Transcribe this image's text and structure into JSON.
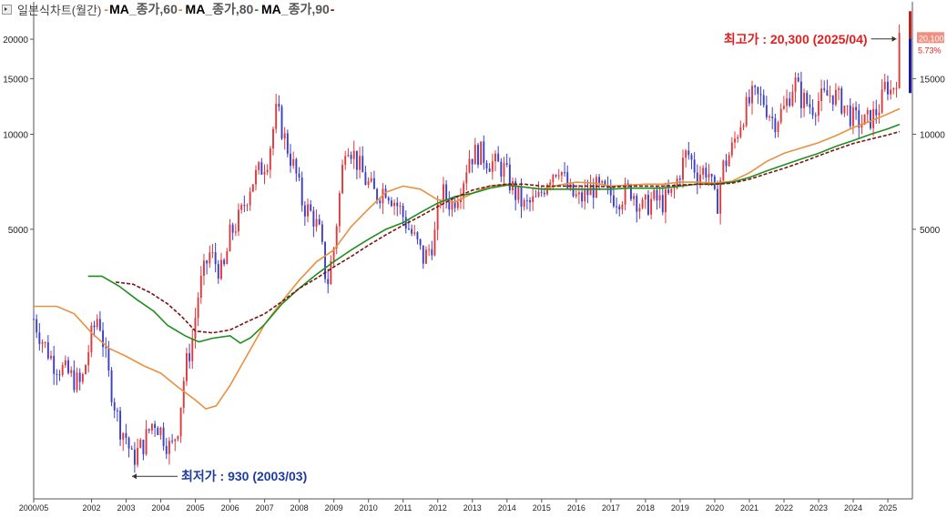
{
  "legend": {
    "title": "일본식차트(월간)",
    "ma_items": [
      {
        "prefix": "MA",
        "label": "_종가,60",
        "color": "#e8913f"
      },
      {
        "prefix": "MA",
        "label": "_종가,80",
        "color": "#1f8f1f"
      },
      {
        "prefix": "MA",
        "label": "_종가,90",
        "color": "#7b1515"
      }
    ],
    "dash": "-"
  },
  "colors": {
    "up": "#e0383b",
    "down": "#3b3fc7",
    "grid": "#d9d9d9",
    "max_text": "#e02020",
    "min_text": "#1f3ca0",
    "price_box": "#f09080"
  },
  "chart_data": {
    "type": "candlestick",
    "y_scale": "log",
    "ylim": [
      700,
      23000
    ],
    "y_ticks_left": [
      20000,
      15000,
      10000,
      5000
    ],
    "y_ticks_left_labels": [
      "20000",
      "15000",
      "10000",
      "5000"
    ],
    "y_ticks_right": [
      15000,
      10000,
      5000
    ],
    "y_ticks_right_labels": [
      "15000",
      "10000",
      "5000"
    ],
    "x_tick_labels": [
      "2000/05",
      "2002",
      "2003",
      "2004",
      "2005",
      "2006",
      "2007",
      "2008",
      "2009",
      "2010",
      "2011",
      "2012",
      "2013",
      "2014",
      "2015",
      "2016",
      "2017",
      "2018",
      "2019",
      "2020",
      "2021",
      "2022",
      "2023",
      "2024",
      "2025"
    ],
    "x_tick_dates": [
      2000.33,
      2002.0,
      2003.0,
      2004.0,
      2005.0,
      2006.0,
      2007.0,
      2008.0,
      2009.0,
      2010.0,
      2011.0,
      2012.0,
      2013.0,
      2014.0,
      2015.0,
      2016.0,
      2017.0,
      2018.0,
      2019.0,
      2020.0,
      2021.0,
      2022.0,
      2023.0,
      2024.0,
      2025.0
    ],
    "x_range": [
      2000.33,
      2025.34
    ],
    "close_path": [
      [
        2000.33,
        2600
      ],
      [
        2000.6,
        2200
      ],
      [
        2000.9,
        1900
      ],
      [
        2001.3,
        1750
      ],
      [
        2001.7,
        1600
      ],
      [
        2002.0,
        2300
      ],
      [
        2002.2,
        2700
      ],
      [
        2002.5,
        1700
      ],
      [
        2002.8,
        1200
      ],
      [
        2003.0,
        1100
      ],
      [
        2003.17,
        930
      ],
      [
        2003.5,
        1050
      ],
      [
        2003.8,
        1250
      ],
      [
        2004.0,
        1150
      ],
      [
        2004.3,
        1000
      ],
      [
        2004.5,
        1200
      ],
      [
        2004.7,
        1800
      ],
      [
        2004.9,
        2200
      ],
      [
        2005.1,
        3200
      ],
      [
        2005.4,
        4200
      ],
      [
        2005.8,
        3600
      ],
      [
        2006.0,
        4800
      ],
      [
        2006.3,
        5500
      ],
      [
        2006.6,
        7000
      ],
      [
        2006.9,
        7800
      ],
      [
        2007.1,
        8500
      ],
      [
        2007.35,
        12000
      ],
      [
        2007.6,
        9500
      ],
      [
        2007.9,
        7500
      ],
      [
        2008.1,
        6000
      ],
      [
        2008.4,
        5500
      ],
      [
        2008.6,
        4800
      ],
      [
        2008.8,
        3300
      ],
      [
        2009.0,
        4400
      ],
      [
        2009.2,
        7000
      ],
      [
        2009.35,
        9800
      ],
      [
        2009.6,
        8500
      ],
      [
        2009.9,
        7200
      ],
      [
        2010.2,
        6400
      ],
      [
        2010.5,
        6800
      ],
      [
        2010.9,
        5800
      ],
      [
        2011.1,
        5200
      ],
      [
        2011.4,
        4500
      ],
      [
        2011.6,
        4000
      ],
      [
        2011.9,
        4700
      ],
      [
        2012.1,
        6600
      ],
      [
        2012.4,
        6000
      ],
      [
        2012.7,
        7000
      ],
      [
        2012.9,
        8500
      ],
      [
        2013.2,
        8800
      ],
      [
        2013.5,
        8200
      ],
      [
        2013.9,
        7800
      ],
      [
        2014.2,
        6600
      ],
      [
        2014.5,
        5900
      ],
      [
        2014.9,
        6200
      ],
      [
        2015.2,
        7400
      ],
      [
        2015.5,
        8000
      ],
      [
        2015.8,
        6500
      ],
      [
        2016.1,
        6200
      ],
      [
        2016.5,
        6800
      ],
      [
        2016.9,
        6500
      ],
      [
        2017.2,
        6300
      ],
      [
        2017.6,
        6700
      ],
      [
        2017.9,
        5800
      ],
      [
        2018.2,
        6200
      ],
      [
        2018.5,
        6100
      ],
      [
        2018.8,
        6500
      ],
      [
        2019.0,
        7700
      ],
      [
        2019.2,
        8800
      ],
      [
        2019.5,
        7500
      ],
      [
        2019.8,
        7800
      ],
      [
        2020.05,
        5800
      ],
      [
        2020.2,
        7700
      ],
      [
        2020.5,
        9000
      ],
      [
        2020.8,
        11500
      ],
      [
        2021.1,
        13200
      ],
      [
        2021.4,
        12800
      ],
      [
        2021.7,
        11000
      ],
      [
        2022.0,
        12000
      ],
      [
        2022.3,
        14800
      ],
      [
        2022.5,
        13000
      ],
      [
        2022.8,
        12200
      ],
      [
        2023.0,
        12800
      ],
      [
        2023.4,
        13500
      ],
      [
        2023.7,
        12500
      ],
      [
        2024.0,
        11200
      ],
      [
        2024.3,
        10800
      ],
      [
        2024.6,
        11500
      ],
      [
        2024.8,
        12500
      ],
      [
        2024.95,
        14600
      ],
      [
        2025.1,
        13600
      ],
      [
        2025.25,
        15400
      ],
      [
        2025.34,
        20100
      ]
    ],
    "ma60": [
      [
        2000.33,
        2850
      ],
      [
        2001.0,
        2850
      ],
      [
        2001.5,
        2700
      ],
      [
        2002.0,
        2350
      ],
      [
        2002.5,
        2100
      ],
      [
        2003.0,
        1980
      ],
      [
        2003.5,
        1850
      ],
      [
        2004.0,
        1750
      ],
      [
        2004.5,
        1580
      ],
      [
        2005.0,
        1440
      ],
      [
        2005.3,
        1350
      ],
      [
        2005.6,
        1380
      ],
      [
        2006.0,
        1600
      ],
      [
        2006.5,
        2000
      ],
      [
        2007.0,
        2500
      ],
      [
        2007.5,
        2950
      ],
      [
        2008.0,
        3450
      ],
      [
        2008.5,
        3950
      ],
      [
        2009.0,
        4300
      ],
      [
        2009.5,
        5100
      ],
      [
        2010.0,
        5800
      ],
      [
        2010.5,
        6550
      ],
      [
        2011.0,
        6850
      ],
      [
        2011.5,
        6700
      ],
      [
        2012.0,
        6200
      ],
      [
        2012.5,
        6100
      ],
      [
        2013.0,
        6500
      ],
      [
        2013.5,
        6850
      ],
      [
        2014.0,
        6950
      ],
      [
        2014.5,
        6800
      ],
      [
        2015.0,
        6700
      ],
      [
        2015.5,
        6900
      ],
      [
        2016.0,
        7050
      ],
      [
        2016.5,
        7000
      ],
      [
        2017.0,
        6850
      ],
      [
        2017.5,
        6900
      ],
      [
        2018.0,
        6950
      ],
      [
        2018.5,
        6950
      ],
      [
        2019.0,
        7050
      ],
      [
        2019.5,
        7050
      ],
      [
        2020.0,
        7000
      ],
      [
        2020.5,
        7100
      ],
      [
        2021.0,
        7550
      ],
      [
        2021.5,
        8200
      ],
      [
        2022.0,
        8700
      ],
      [
        2022.5,
        9050
      ],
      [
        2023.0,
        9400
      ],
      [
        2023.5,
        9900
      ],
      [
        2024.0,
        10500
      ],
      [
        2024.5,
        11000
      ],
      [
        2025.0,
        11600
      ],
      [
        2025.34,
        12050
      ]
    ],
    "ma80": [
      [
        2001.9,
        3550
      ],
      [
        2002.3,
        3550
      ],
      [
        2002.8,
        3300
      ],
      [
        2003.3,
        3000
      ],
      [
        2003.8,
        2750
      ],
      [
        2004.2,
        2480
      ],
      [
        2004.7,
        2300
      ],
      [
        2005.1,
        2200
      ],
      [
        2005.5,
        2260
      ],
      [
        2006.0,
        2300
      ],
      [
        2006.3,
        2180
      ],
      [
        2006.6,
        2270
      ],
      [
        2007.0,
        2500
      ],
      [
        2007.5,
        2900
      ],
      [
        2008.0,
        3250
      ],
      [
        2008.5,
        3600
      ],
      [
        2009.0,
        3950
      ],
      [
        2009.5,
        4300
      ],
      [
        2010.0,
        4650
      ],
      [
        2010.5,
        5000
      ],
      [
        2011.0,
        5250
      ],
      [
        2011.5,
        5650
      ],
      [
        2012.0,
        6050
      ],
      [
        2012.5,
        6350
      ],
      [
        2013.0,
        6500
      ],
      [
        2013.5,
        6750
      ],
      [
        2014.0,
        6900
      ],
      [
        2014.5,
        6800
      ],
      [
        2015.0,
        6700
      ],
      [
        2015.5,
        6700
      ],
      [
        2016.0,
        6700
      ],
      [
        2016.5,
        6700
      ],
      [
        2017.0,
        6700
      ],
      [
        2017.5,
        6750
      ],
      [
        2018.0,
        6750
      ],
      [
        2018.5,
        6750
      ],
      [
        2019.0,
        6850
      ],
      [
        2019.5,
        6950
      ],
      [
        2020.0,
        6950
      ],
      [
        2020.5,
        7050
      ],
      [
        2021.0,
        7300
      ],
      [
        2021.5,
        7650
      ],
      [
        2022.0,
        8000
      ],
      [
        2022.5,
        8350
      ],
      [
        2023.0,
        8700
      ],
      [
        2023.5,
        9150
      ],
      [
        2024.0,
        9550
      ],
      [
        2024.5,
        10000
      ],
      [
        2025.0,
        10400
      ],
      [
        2025.34,
        10750
      ]
    ],
    "ma90": [
      [
        2002.7,
        3400
      ],
      [
        2003.2,
        3350
      ],
      [
        2003.7,
        3150
      ],
      [
        2004.2,
        2900
      ],
      [
        2004.6,
        2650
      ],
      [
        2005.0,
        2380
      ],
      [
        2005.5,
        2350
      ],
      [
        2006.0,
        2400
      ],
      [
        2006.5,
        2550
      ],
      [
        2007.0,
        2700
      ],
      [
        2007.5,
        2950
      ],
      [
        2008.0,
        3250
      ],
      [
        2008.5,
        3500
      ],
      [
        2009.0,
        3800
      ],
      [
        2009.5,
        4100
      ],
      [
        2010.0,
        4450
      ],
      [
        2010.5,
        4800
      ],
      [
        2011.0,
        5150
      ],
      [
        2011.5,
        5500
      ],
      [
        2012.0,
        5900
      ],
      [
        2012.5,
        6300
      ],
      [
        2013.0,
        6650
      ],
      [
        2013.5,
        6850
      ],
      [
        2014.0,
        6950
      ],
      [
        2014.5,
        6950
      ],
      [
        2015.0,
        6850
      ],
      [
        2015.5,
        6850
      ],
      [
        2016.0,
        6850
      ],
      [
        2016.5,
        6850
      ],
      [
        2017.0,
        6800
      ],
      [
        2017.5,
        6850
      ],
      [
        2018.0,
        6850
      ],
      [
        2018.5,
        6850
      ],
      [
        2019.0,
        6900
      ],
      [
        2019.5,
        6950
      ],
      [
        2020.0,
        6950
      ],
      [
        2020.5,
        7000
      ],
      [
        2021.0,
        7200
      ],
      [
        2021.5,
        7500
      ],
      [
        2022.0,
        7800
      ],
      [
        2022.5,
        8150
      ],
      [
        2023.0,
        8550
      ],
      [
        2023.5,
        8950
      ],
      [
        2024.0,
        9350
      ],
      [
        2024.5,
        9650
      ],
      [
        2025.0,
        9950
      ],
      [
        2025.34,
        10200
      ]
    ],
    "annotations": {
      "max_label": "최고가 : 20,300 (2025/04)",
      "max_value": 20300,
      "max_date": 2025.25,
      "min_label": "최저가 : 930 (2003/03)",
      "min_value": 930,
      "min_date": 2003.17
    },
    "current_price": "20,100",
    "current_change": "5.73%",
    "current_value": 20100
  }
}
